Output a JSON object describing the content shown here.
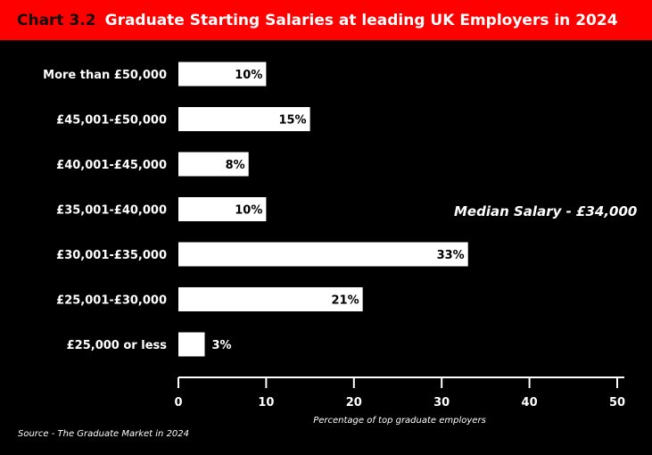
{
  "header": {
    "chart_number": "Chart 3.2",
    "title": "Graduate Starting Salaries at leading UK Employers in 2024"
  },
  "colors": {
    "header_bg": "#ff0000",
    "background": "#000000",
    "bar": "#ffffff"
  },
  "chart_data": {
    "type": "bar",
    "orientation": "horizontal",
    "categories": [
      "More than £50,000",
      "£45,001-£50,000",
      "£40,001-£45,000",
      "£35,001-£40,000",
      "£30,001-£35,000",
      "£25,001-£30,000",
      "£25,000 or less"
    ],
    "values": [
      10,
      15,
      8,
      10,
      33,
      21,
      3
    ],
    "value_labels": [
      "10%",
      "15%",
      "8%",
      "10%",
      "33%",
      "21%",
      "3%"
    ],
    "xlim": [
      0,
      50
    ],
    "xticks": [
      0,
      10,
      20,
      30,
      40,
      50
    ],
    "xlabel": "Percentage of top graduate employers",
    "annotation": "Median Salary - £34,000",
    "grid": false
  },
  "source": "Source - The Graduate Market in 2024"
}
